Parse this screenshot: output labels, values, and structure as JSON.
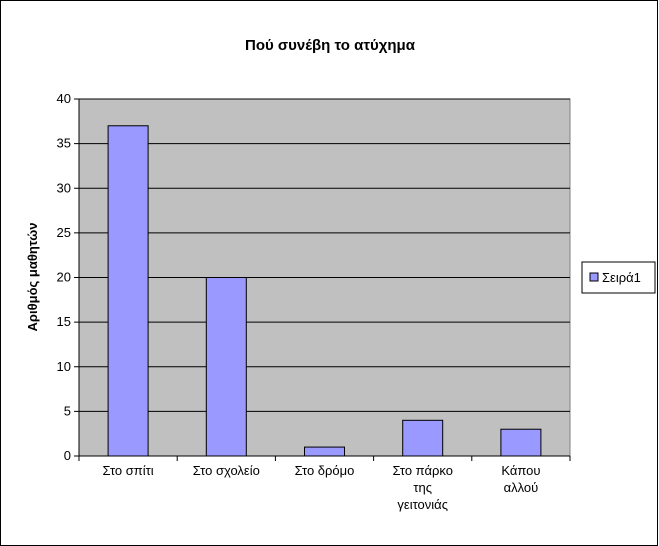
{
  "chart_data": {
    "type": "bar",
    "title": "Πού συνέβη το ατύχημα",
    "ylabel": "Αριθμός μαθητών",
    "categories": [
      "Στο σπίτι",
      "Στο σχολείο",
      "Στο δρόμο",
      "Στο πάρκο\nτης\nγειτονιάς",
      "Κάπου\nαλλού"
    ],
    "series": [
      {
        "name": "Σειρά1",
        "color": "#9999ff",
        "values": [
          37,
          20,
          1,
          4,
          3
        ]
      }
    ],
    "ylim": [
      0,
      40
    ],
    "yticks": [
      0,
      5,
      10,
      15,
      20,
      25,
      30,
      35,
      40
    ],
    "grid": true,
    "legend": "right"
  }
}
